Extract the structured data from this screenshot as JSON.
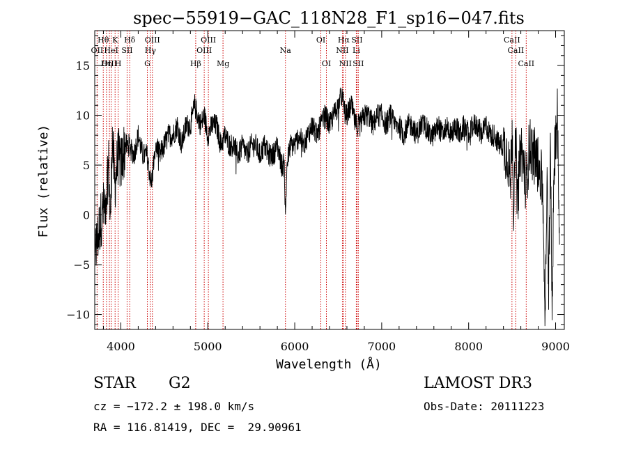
{
  "chart_data": {
    "type": "line",
    "title": "spec−55919−GAC_118N28_F1_sp16−047.fits",
    "xlabel": "Wavelength (Å)",
    "ylabel": "Flux (relative)",
    "xlim": [
      3700,
      9100
    ],
    "ylim": [
      -11.5,
      18.5
    ],
    "xticks": [
      4000,
      5000,
      6000,
      7000,
      8000,
      9000
    ],
    "yticks": [
      -10,
      -5,
      0,
      5,
      10,
      15
    ],
    "xtick_labels": [
      "4000",
      "5000",
      "6000",
      "7000",
      "8000",
      "9000"
    ],
    "ytick_labels": [
      "−10",
      "−5",
      "0",
      "5",
      "10",
      "15"
    ],
    "line_color": "#000000",
    "marker_color": "#cc0000",
    "spectrum": {
      "name": "flux",
      "x": [
        3700,
        3740,
        3780,
        3820,
        3860,
        3880,
        3900,
        3930,
        3970,
        4000,
        4050,
        4100,
        4150,
        4200,
        4250,
        4300,
        4350,
        4400,
        4450,
        4500,
        4550,
        4600,
        4650,
        4700,
        4750,
        4800,
        4850,
        4880,
        4920,
        4960,
        5000,
        5050,
        5100,
        5150,
        5200,
        5250,
        5300,
        5350,
        5400,
        5450,
        5500,
        5550,
        5600,
        5650,
        5700,
        5750,
        5800,
        5850,
        5880,
        5893,
        5910,
        5950,
        6000,
        6050,
        6100,
        6150,
        6200,
        6250,
        6300,
        6350,
        6400,
        6450,
        6500,
        6540,
        6563,
        6580,
        6600,
        6650,
        6700,
        6750,
        6800,
        6850,
        6900,
        6950,
        7000,
        7050,
        7100,
        7150,
        7200,
        7250,
        7300,
        7350,
        7400,
        7450,
        7500,
        7550,
        7600,
        7650,
        7700,
        7750,
        7800,
        7850,
        7900,
        7950,
        8000,
        8050,
        8100,
        8150,
        8200,
        8250,
        8300,
        8350,
        8400,
        8450,
        8480,
        8500,
        8520,
        8542,
        8560,
        8600,
        8662,
        8700,
        8750,
        8800,
        8850,
        8880,
        8900,
        8920,
        8940,
        8960,
        8980,
        9000,
        9020,
        9040
      ],
      "y": [
        -4,
        -2,
        0,
        1,
        5,
        -1,
        8,
        3,
        6,
        5,
        7,
        7,
        6,
        8,
        6,
        6,
        3,
        7,
        6,
        7,
        8,
        8,
        9,
        7,
        9,
        9,
        11,
        10,
        9,
        10,
        8,
        9,
        9,
        7,
        8,
        7,
        7,
        6,
        7,
        6,
        7,
        7,
        6,
        7,
        6,
        6,
        7,
        5,
        5,
        -0.5,
        5,
        7,
        7,
        8,
        7,
        8,
        9,
        8,
        9,
        10,
        9,
        10,
        11,
        12,
        11,
        10,
        10,
        11,
        9,
        9,
        10,
        10,
        9,
        10,
        10,
        9,
        10,
        9,
        9,
        8,
        9,
        9,
        8,
        9,
        9,
        8,
        8,
        9,
        8,
        9,
        8,
        9,
        8,
        9,
        8,
        9,
        9,
        8,
        9,
        8,
        8,
        7,
        7,
        6,
        3,
        9,
        1,
        8,
        1,
        7,
        3,
        7,
        6,
        5,
        3,
        -10,
        4,
        -8,
        6,
        -10,
        5,
        8,
        10,
        0
      ]
    },
    "lines": [
      {
        "label": "Hθ",
        "wl": 3798,
        "row": 0
      },
      {
        "label": "OII",
        "wl": 3727,
        "row": 1
      },
      {
        "label": "OIII",
        "wl": 3869,
        "row": 2
      },
      {
        "label": "Hη",
        "wl": 3835,
        "row": 2
      },
      {
        "label": "HeI",
        "wl": 3889,
        "row": 1
      },
      {
        "label": "K",
        "wl": 3934,
        "row": 0
      },
      {
        "label": "H",
        "wl": 3969,
        "row": 2
      },
      {
        "label": "SII",
        "wl": 4072,
        "row": 1
      },
      {
        "label": "Hδ",
        "wl": 4102,
        "row": 0
      },
      {
        "label": "OIII",
        "wl": 4363,
        "row": 0
      },
      {
        "label": "Hγ",
        "wl": 4340,
        "row": 1
      },
      {
        "label": "G",
        "wl": 4305,
        "row": 2
      },
      {
        "label": "Hβ",
        "wl": 4861,
        "row": 2
      },
      {
        "label": "OIII",
        "wl": 4959,
        "row": 1
      },
      {
        "label": "OIII",
        "wl": 5007,
        "row": 0
      },
      {
        "label": "Mg",
        "wl": 5175,
        "row": 2
      },
      {
        "label": "Na",
        "wl": 5893,
        "row": 1
      },
      {
        "label": "OI",
        "wl": 6300,
        "row": 0
      },
      {
        "label": "OI",
        "wl": 6364,
        "row": 2
      },
      {
        "label": "Hα",
        "wl": 6563,
        "row": 0
      },
      {
        "label": "NII",
        "wl": 6548,
        "row": 1
      },
      {
        "label": "NII",
        "wl": 6583,
        "row": 2
      },
      {
        "label": "SII",
        "wl": 6716,
        "row": 0
      },
      {
        "label": "Li",
        "wl": 6708,
        "row": 1
      },
      {
        "label": "SII",
        "wl": 6731,
        "row": 2
      },
      {
        "label": "CaII",
        "wl": 8498,
        "row": 0
      },
      {
        "label": "CaII",
        "wl": 8542,
        "row": 1
      },
      {
        "label": "CaII",
        "wl": 8662,
        "row": 2
      }
    ]
  },
  "info": {
    "class_label": "STAR",
    "subclass": "G2",
    "survey": "LAMOST DR3",
    "cz": "cz = −172.2 ± 198.0 km/s",
    "obs_date": "Obs-Date: 20111223",
    "coords": "RA = 116.81419, DEC =  29.90961"
  }
}
